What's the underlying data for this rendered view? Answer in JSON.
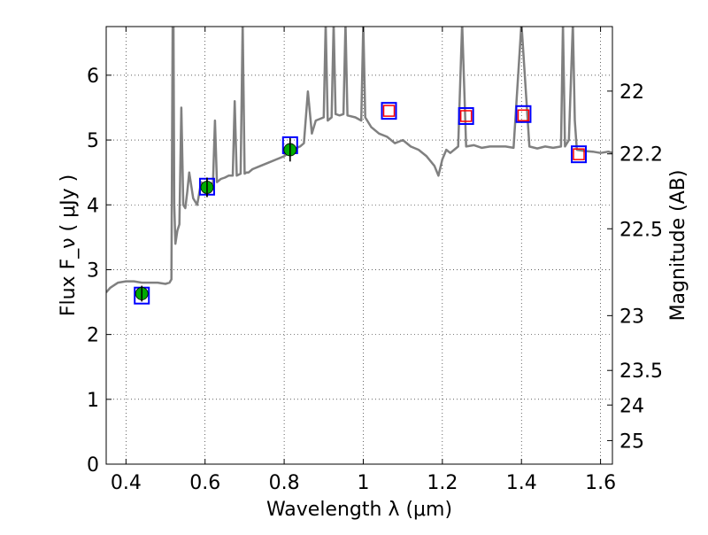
{
  "chart_data": {
    "type": "line",
    "xlabel": "Wavelength  λ (μm)",
    "ylabel": "Flux  F_ν  ( μJy )",
    "y2label": "Magnitude (AB)",
    "xlim": [
      0.35,
      1.63
    ],
    "ylim": [
      0,
      6.75
    ],
    "grid": true,
    "x_ticks": [
      {
        "v": 0.4,
        "label": "0.4"
      },
      {
        "v": 0.6,
        "label": "0.6"
      },
      {
        "v": 0.8,
        "label": "0.8"
      },
      {
        "v": 1.0,
        "label": "1"
      },
      {
        "v": 1.2,
        "label": "1.2"
      },
      {
        "v": 1.4,
        "label": "1.4"
      },
      {
        "v": 1.6,
        "label": "1.6"
      }
    ],
    "y_ticks": [
      {
        "v": 0,
        "label": "0"
      },
      {
        "v": 1,
        "label": "1"
      },
      {
        "v": 2,
        "label": "2"
      },
      {
        "v": 3,
        "label": "3"
      },
      {
        "v": 4,
        "label": "4"
      },
      {
        "v": 5,
        "label": "5"
      },
      {
        "v": 6,
        "label": "6"
      }
    ],
    "y2_ticks": [
      {
        "mag": 22,
        "label": "22"
      },
      {
        "mag": 22.2,
        "label": "22.2"
      },
      {
        "mag": 22.5,
        "label": "22.5"
      },
      {
        "mag": 23,
        "label": "23"
      },
      {
        "mag": 23.5,
        "label": "23.5"
      },
      {
        "mag": 24,
        "label": "24"
      },
      {
        "mag": 25,
        "label": "25"
      }
    ],
    "colors": {
      "spectrum": "#808080",
      "model_box": "#0000ff",
      "observed": "#00aa00",
      "upper_limit": "#ff0000"
    },
    "series": [
      {
        "kind": "spectrum",
        "x": [
          0.35,
          0.36,
          0.38,
          0.4,
          0.42,
          0.44,
          0.46,
          0.48,
          0.5,
          0.51,
          0.515,
          0.518,
          0.52,
          0.522,
          0.525,
          0.53,
          0.535,
          0.54,
          0.545,
          0.55,
          0.555,
          0.56,
          0.57,
          0.58,
          0.59,
          0.6,
          0.61,
          0.62,
          0.625,
          0.63,
          0.64,
          0.65,
          0.66,
          0.67,
          0.675,
          0.68,
          0.69,
          0.695,
          0.7,
          0.705,
          0.71,
          0.72,
          0.74,
          0.76,
          0.78,
          0.8,
          0.82,
          0.84,
          0.85,
          0.86,
          0.87,
          0.88,
          0.9,
          0.905,
          0.91,
          0.92,
          0.925,
          0.93,
          0.94,
          0.95,
          0.955,
          0.96,
          0.98,
          0.995,
          1.0,
          1.005,
          1.02,
          1.04,
          1.06,
          1.08,
          1.1,
          1.12,
          1.14,
          1.16,
          1.18,
          1.19,
          1.2,
          1.21,
          1.22,
          1.24,
          1.25,
          1.26,
          1.28,
          1.3,
          1.32,
          1.34,
          1.36,
          1.38,
          1.4,
          1.42,
          1.44,
          1.46,
          1.48,
          1.5,
          1.505,
          1.51,
          1.52,
          1.53,
          1.535,
          1.54,
          1.56,
          1.58,
          1.6,
          1.62,
          1.63
        ],
        "y": [
          2.65,
          2.72,
          2.8,
          2.82,
          2.82,
          2.8,
          2.8,
          2.8,
          2.78,
          2.8,
          2.85,
          6.8,
          6.8,
          4.0,
          3.4,
          3.6,
          3.7,
          5.5,
          4.0,
          3.95,
          4.2,
          4.5,
          4.1,
          4.0,
          4.35,
          4.3,
          4.25,
          4.35,
          5.3,
          4.35,
          4.4,
          4.42,
          4.45,
          4.45,
          5.6,
          4.45,
          4.48,
          6.8,
          4.48,
          4.5,
          4.5,
          4.55,
          4.6,
          4.65,
          4.7,
          4.75,
          4.85,
          4.9,
          4.95,
          5.75,
          5.1,
          5.3,
          5.35,
          6.8,
          5.3,
          5.35,
          6.8,
          5.4,
          5.38,
          5.4,
          6.8,
          5.38,
          5.35,
          5.3,
          6.8,
          5.35,
          5.2,
          5.1,
          5.05,
          4.95,
          5.0,
          4.9,
          4.85,
          4.75,
          4.6,
          4.45,
          4.7,
          4.85,
          4.8,
          4.9,
          6.8,
          4.9,
          4.92,
          4.88,
          4.9,
          4.9,
          4.9,
          4.88,
          6.8,
          4.9,
          4.87,
          4.9,
          4.88,
          4.9,
          6.8,
          4.9,
          5.0,
          6.8,
          5.3,
          4.85,
          4.83,
          4.82,
          4.8,
          4.82,
          4.8
        ]
      },
      {
        "kind": "model_box",
        "x": [
          0.44,
          0.605,
          0.815,
          1.065,
          1.26,
          1.405,
          1.545
        ],
        "y": [
          2.6,
          4.28,
          4.92,
          5.45,
          5.37,
          5.4,
          4.78
        ]
      },
      {
        "kind": "observed",
        "x": [
          0.44,
          0.605,
          0.815
        ],
        "y": [
          2.63,
          4.27,
          4.85
        ],
        "err": [
          0.12,
          0.15,
          0.18
        ]
      },
      {
        "kind": "upper_limit",
        "x": [
          1.065,
          1.26,
          1.405,
          1.545
        ],
        "y": [
          5.45,
          5.37,
          5.38,
          4.78
        ]
      }
    ]
  }
}
